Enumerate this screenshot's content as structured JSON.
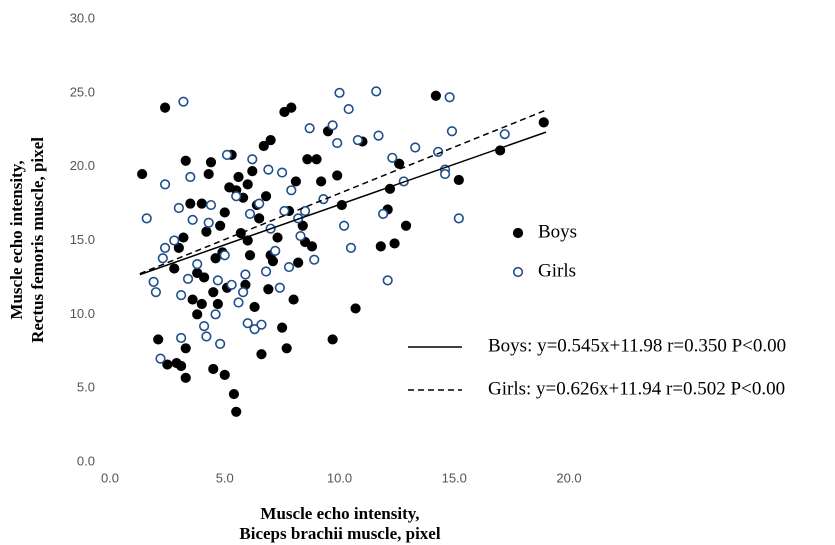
{
  "chart_data": {
    "type": "scatter",
    "xlabel": [
      "Muscle echo intensity,",
      "Biceps brachii muscle, pixel"
    ],
    "ylabel": [
      "Muscle echo intensity,",
      "Rectus femoris muscle, pixel"
    ],
    "xlim": [
      0,
      20
    ],
    "ylim": [
      0,
      30
    ],
    "xticks": [
      {
        "value": 0,
        "label": "0.0"
      },
      {
        "value": 5,
        "label": "5.0"
      },
      {
        "value": 10,
        "label": "10.0"
      },
      {
        "value": 15,
        "label": "15.0"
      },
      {
        "value": 20,
        "label": "20.0"
      }
    ],
    "yticks": [
      {
        "value": 0,
        "label": "0.0"
      },
      {
        "value": 5,
        "label": "5.0"
      },
      {
        "value": 10,
        "label": "10.0"
      },
      {
        "value": 15,
        "label": "15.0"
      },
      {
        "value": 20,
        "label": "20.0"
      },
      {
        "value": 25,
        "label": "25.0"
      },
      {
        "value": 30,
        "label": "30.0"
      }
    ],
    "grid": false,
    "legend": "right",
    "series": [
      {
        "name": "Boys",
        "color": "#000000",
        "fill": "#000000",
        "x": [
          1.4,
          2.4,
          2.1,
          2.5,
          2.9,
          3.1,
          3.3,
          3.3,
          2.8,
          3.0,
          3.2,
          3.3,
          3.5,
          3.6,
          3.8,
          4.0,
          4.1,
          4.2,
          4.3,
          4.4,
          4.5,
          4.6,
          4.7,
          4.8,
          4.9,
          5.0,
          5.1,
          5.2,
          5.3,
          5.4,
          5.5,
          5.6,
          5.7,
          5.8,
          5.9,
          6.0,
          6.1,
          6.2,
          6.3,
          6.5,
          6.6,
          6.7,
          6.8,
          6.9,
          7.0,
          7.1,
          7.3,
          7.5,
          7.6,
          7.7,
          7.8,
          7.9,
          8.0,
          8.1,
          8.2,
          8.4,
          8.5,
          8.6,
          8.8,
          9.0,
          9.2,
          9.5,
          9.7,
          9.9,
          10.1,
          10.7,
          11.0,
          11.8,
          12.1,
          12.2,
          12.4,
          12.6,
          12.9,
          14.2,
          15.2,
          17.0,
          18.9,
          4.0,
          5.5,
          6.0,
          7.0,
          3.8,
          4.5,
          5.0,
          6.4
        ],
        "y": [
          19.5,
          24.0,
          8.3,
          6.6,
          6.7,
          6.5,
          7.7,
          5.7,
          13.1,
          14.5,
          15.2,
          20.4,
          17.5,
          11.0,
          10.0,
          10.7,
          12.5,
          15.6,
          19.5,
          20.3,
          6.3,
          13.8,
          10.7,
          16.0,
          14.2,
          5.9,
          11.8,
          18.6,
          20.8,
          4.6,
          3.4,
          19.3,
          15.5,
          17.9,
          12.0,
          18.8,
          14.0,
          19.7,
          10.5,
          16.5,
          7.3,
          21.4,
          18.0,
          11.7,
          21.8,
          13.6,
          15.2,
          9.1,
          23.7,
          7.7,
          17.0,
          24.0,
          11.0,
          19.0,
          13.5,
          16.0,
          14.9,
          20.5,
          14.6,
          20.5,
          19.0,
          22.4,
          8.3,
          19.4,
          17.4,
          10.4,
          21.7,
          14.6,
          17.1,
          18.5,
          14.8,
          20.2,
          16.0,
          24.8,
          19.1,
          21.1,
          23.0,
          17.5,
          18.4,
          15.0,
          14.0,
          12.8,
          11.5,
          16.9,
          17.4
        ]
      },
      {
        "name": "Girls",
        "color": "#1f4e8c",
        "fill": "#ffffff",
        "x": [
          1.6,
          1.9,
          2.0,
          2.2,
          2.3,
          2.4,
          2.4,
          2.8,
          3.0,
          3.1,
          3.2,
          3.1,
          3.5,
          3.6,
          3.8,
          4.1,
          4.2,
          4.3,
          4.6,
          4.7,
          4.8,
          5.0,
          5.1,
          5.3,
          5.5,
          5.6,
          5.8,
          6.0,
          6.1,
          6.3,
          6.5,
          6.6,
          6.8,
          6.9,
          7.0,
          7.2,
          7.4,
          7.6,
          7.8,
          7.9,
          8.2,
          8.5,
          8.7,
          8.9,
          9.3,
          9.7,
          9.9,
          10.0,
          10.2,
          10.4,
          10.5,
          10.8,
          11.6,
          11.7,
          11.9,
          12.1,
          12.3,
          12.8,
          13.3,
          14.3,
          14.6,
          14.8,
          14.9,
          15.2,
          17.2,
          14.6,
          6.2,
          7.5,
          5.9,
          4.4,
          3.4,
          8.3
        ],
        "y": [
          16.5,
          12.2,
          11.5,
          7.0,
          13.8,
          14.5,
          18.8,
          15.0,
          17.2,
          11.3,
          24.4,
          8.4,
          19.3,
          16.4,
          13.4,
          9.2,
          8.5,
          16.2,
          10.0,
          12.3,
          8.0,
          14.0,
          20.8,
          12.0,
          18.0,
          10.8,
          11.5,
          9.4,
          16.8,
          9.0,
          17.5,
          9.3,
          12.9,
          19.8,
          15.8,
          14.3,
          11.8,
          17.0,
          13.2,
          18.4,
          16.5,
          17.0,
          22.6,
          13.7,
          17.8,
          22.8,
          21.6,
          25.0,
          16.0,
          23.9,
          14.5,
          21.8,
          25.1,
          22.1,
          16.8,
          12.3,
          20.6,
          19.0,
          21.3,
          21.0,
          19.8,
          24.7,
          22.4,
          16.5,
          22.2,
          19.5,
          20.5,
          19.6,
          12.7,
          17.4,
          12.4,
          15.3
        ]
      }
    ],
    "trendlines": [
      {
        "name": "Boys: y=0.545x+11.98 r=0.350 P<0.00",
        "x": [
          1.3,
          19
        ],
        "y": [
          12.69,
          22.34
        ],
        "dashed": false,
        "color": "#000000"
      },
      {
        "name": "Girls: y=0.626x+11.94 r=0.502 P<0.00",
        "x": [
          1.3,
          19
        ],
        "y": [
          12.75,
          23.83
        ],
        "dashed": true,
        "color": "#000000"
      }
    ]
  }
}
